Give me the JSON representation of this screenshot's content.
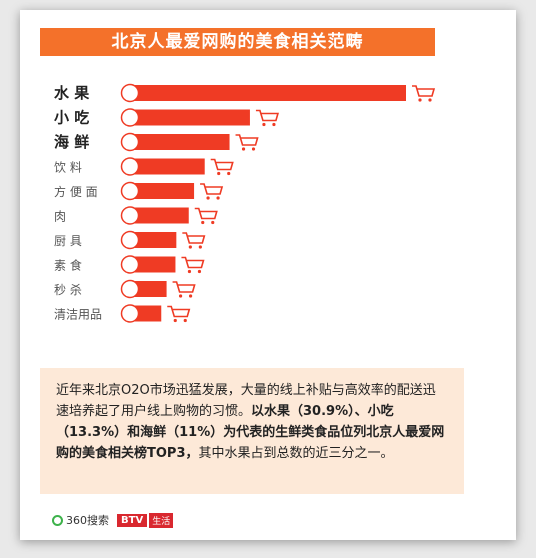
{
  "title": "北京人最爱网购的美食相关范畴",
  "chart_data": {
    "type": "bar",
    "orientation": "horizontal",
    "categories": [
      "水  果",
      "小  吃",
      "海  鲜",
      "饮  料",
      "方 便 面",
      "肉",
      "厨  具",
      "素  食",
      "秒  杀",
      "清洁用品"
    ],
    "values": [
      30.9,
      13.3,
      11.0,
      8.2,
      7.0,
      6.4,
      5.0,
      4.9,
      3.9,
      3.3
    ],
    "bar_color": "#ef3b24",
    "cart_color": "#ef3b24",
    "xlim": [
      0,
      30.9
    ]
  },
  "description": {
    "line_plain": "近年来北京O2O市场迅猛发展，大量的线上补贴与高效率的配送迅速培养起了用户线上购物的习惯。",
    "line_bold": "以水果（30.9%）、小吃（13.3%）和海鲜（11%）为代表的生鲜类食品位列北京人最爱网购的美食相关榜TOP3，",
    "line_tail": "其中水果占到总数的近三分之一。"
  },
  "footer": {
    "logo_360": "360搜索",
    "logo_btv": "BTV",
    "logo_btv_sub": "生活"
  }
}
